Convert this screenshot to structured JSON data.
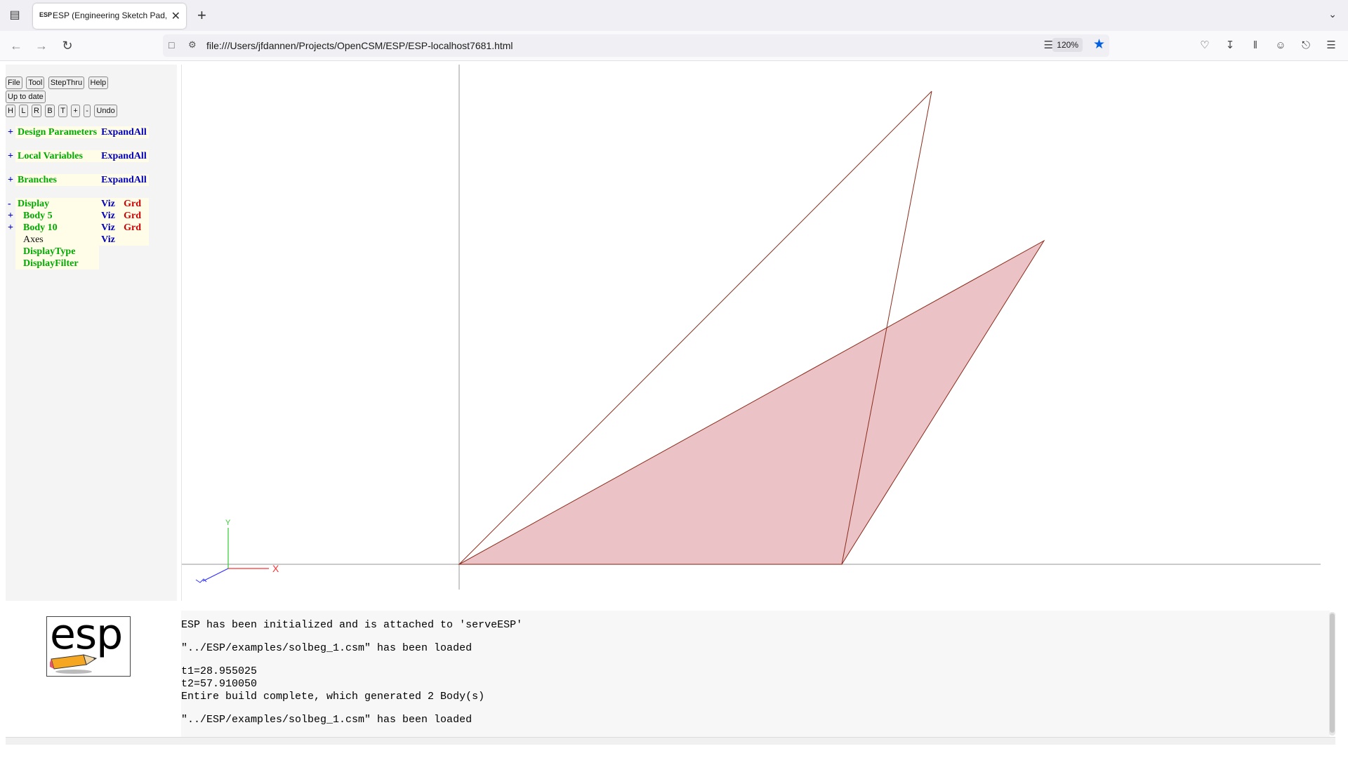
{
  "browser": {
    "tab_title": "ESP (Engineering Sketch Pad, V",
    "favicon_text": "ESP",
    "url": "file:///Users/jfdannen/Projects/OpenCSM/ESP/ESP-localhost7681.html",
    "zoom": "120%"
  },
  "toolbar": {
    "row1": [
      "File",
      "Tool",
      "StepThru",
      "Help"
    ],
    "status": "Up to date",
    "row3": [
      "H",
      "L",
      "R",
      "B",
      "T",
      "+",
      "-",
      "Undo"
    ]
  },
  "tree": {
    "design_parameters": {
      "toggle": "+",
      "label": "Design Parameters",
      "action": "ExpandAll"
    },
    "local_variables": {
      "toggle": "+",
      "label": "Local Variables",
      "action": "ExpandAll"
    },
    "branches": {
      "toggle": "+",
      "label": "Branches",
      "action": "ExpandAll"
    },
    "display": {
      "toggle": "-",
      "label": "Display",
      "viz": "Viz",
      "grd": "Grd"
    },
    "body5": {
      "toggle": "+",
      "label": "Body 5",
      "viz": "Viz",
      "grd": "Grd"
    },
    "body10": {
      "toggle": "+",
      "label": "Body 10",
      "viz": "Viz",
      "grd": "Grd"
    },
    "axes": {
      "label": "Axes",
      "viz": "Viz"
    },
    "display_type": {
      "label": "DisplayType"
    },
    "display_filter": {
      "label": "DisplayFilter"
    }
  },
  "triad": {
    "x_label": "X",
    "y_label": "Y"
  },
  "logo": {
    "text": "esp"
  },
  "messages": [
    "ESP has been initialized and is attached to 'serveESP'",
    "",
    "\"../ESP/examples/solbeg_1.csm\" has been loaded",
    "",
    "t1=28.955025",
    "t2=57.910050",
    "Entire build complete, which generated 2 Body(s)",
    "",
    "\"../ESP/examples/solbeg_1.csm\" has been loaded"
  ],
  "colors": {
    "tree_label": "#00aa00",
    "tree_link": "#0000bb",
    "tree_grd": "#cc0000",
    "face_fill": "#ebc3c7",
    "edge": "#8b2a1a",
    "bookmark_star": "#0060df"
  },
  "icons": {
    "tab_list": "tab-list-icon",
    "back": "back-arrow-icon",
    "forward": "forward-arrow-icon",
    "reload": "reload-icon",
    "reader": "reader-view-icon",
    "bookmark": "bookmark-star-icon",
    "pocket": "pocket-icon",
    "downloads": "downloads-icon",
    "library": "library-icon",
    "account": "account-icon",
    "extensions": "extensions-icon",
    "menu": "hamburger-menu-icon"
  }
}
